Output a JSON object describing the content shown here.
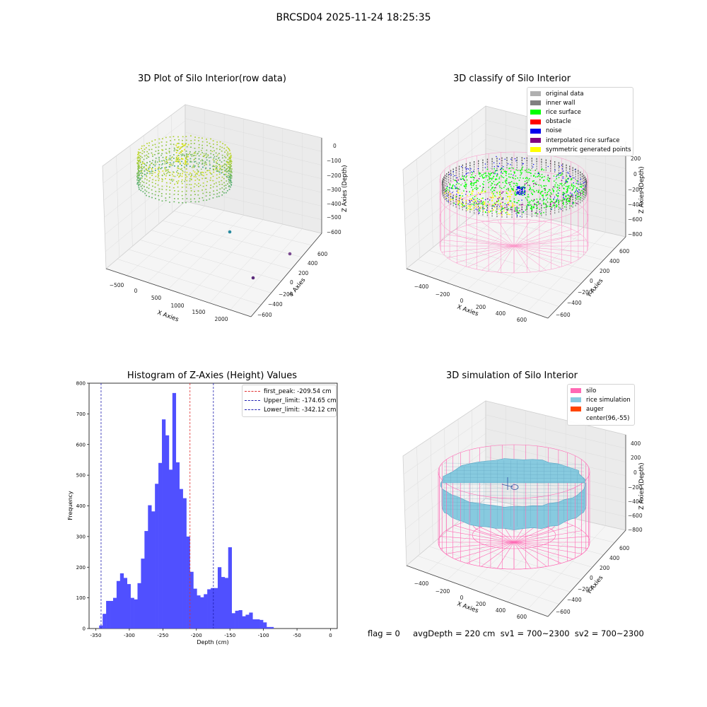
{
  "figure": {
    "title": "BRCSD04 2025-11-24 18:25:35"
  },
  "status_line": "flag = 0     avgDepth = 220 cm  sv1 = 700~2300  sv2 = 700~2300",
  "colors": {
    "hist_bar": "#5050ff",
    "first_peak_line": "#e03030",
    "limit_lines": "#2020b0",
    "silo_wire": "#ff69b4",
    "rice_sim": "#87cadf",
    "auger": "#ff4500",
    "rice_surface": "#00ff00",
    "noise": "#0000ee",
    "viridis_low": "#2a9a8c",
    "viridis_high": "#d8e21a"
  },
  "chart_data": [
    {
      "type": "scatter3d",
      "title": "3D Plot of Silo Interior(row data)",
      "xlabel": "X Axies",
      "ylabel": "Y Axies",
      "zlabel": "Z Axies (Depth)",
      "x_ticks": [
        "−500",
        "0",
        "500",
        "1000",
        "1500",
        "2000"
      ],
      "y_ticks": [
        "600",
        "400",
        "200",
        "0",
        "−200",
        "−400",
        "−600"
      ],
      "z_ticks": [
        "0",
        "−100",
        "−200",
        "−300",
        "−400",
        "−500",
        "−600"
      ],
      "outlier_points": [
        {
          "x": 1200,
          "y": 150,
          "z": -620
        },
        {
          "x": 2100,
          "y": 500,
          "z": -600
        },
        {
          "x": 2050,
          "y": -500,
          "z": -640
        }
      ]
    },
    {
      "type": "scatter3d",
      "title": "3D classify of Silo Interior",
      "xlabel": "X Axies",
      "ylabel": "Y Axies",
      "zlabel": "Z Axies (Depth)",
      "x_ticks": [
        "−400",
        "−200",
        "0",
        "200",
        "400",
        "600"
      ],
      "y_ticks": [
        "600",
        "400",
        "200",
        "0",
        "−200",
        "−400",
        "−600"
      ],
      "z_ticks": [
        "200",
        "0",
        "−200",
        "−400",
        "−600",
        "−800"
      ],
      "legend": [
        {
          "label": "original data",
          "color": "#b0b0b0"
        },
        {
          "label": "inner wall",
          "color": "#808080"
        },
        {
          "label": "rice surface",
          "color": "#00ff00"
        },
        {
          "label": "obstacle",
          "color": "#ff0000"
        },
        {
          "label": "noise",
          "color": "#0000ee"
        },
        {
          "label": "interpolated rice surface",
          "color": "#800080"
        },
        {
          "label": "symmetric generated points",
          "color": "#ffff00"
        }
      ]
    },
    {
      "type": "bar",
      "title": "Histogram of Z-Axies (Height) Values",
      "xlabel": "Depth (cm)",
      "ylabel": "Frequency",
      "xlim": [
        -360,
        10
      ],
      "ylim": [
        0,
        800
      ],
      "x_ticks": [
        -350,
        -300,
        -250,
        -200,
        -150,
        -100,
        -50,
        0
      ],
      "y_ticks": [
        0,
        100,
        200,
        300,
        400,
        500,
        600,
        700,
        800
      ],
      "bin_start": -345,
      "bin_width": 5.2,
      "values": [
        10,
        48,
        90,
        90,
        100,
        155,
        180,
        165,
        145,
        100,
        95,
        148,
        228,
        318,
        402,
        382,
        472,
        540,
        682,
        630,
        518,
        768,
        542,
        455,
        425,
        300,
        185,
        130,
        108,
        102,
        112,
        128,
        132,
        132,
        200,
        168,
        165,
        265,
        50,
        58,
        60,
        40,
        45,
        52,
        30,
        30,
        28,
        20,
        5,
        5
      ],
      "vlines": [
        {
          "label": "first_peak: -209.54 cm",
          "x": -209.54,
          "color": "#e03030"
        },
        {
          "label": "Upper_limit: -174.65 cm",
          "x": -174.65,
          "color": "#2020b0"
        },
        {
          "label": "Lower_limit: -342.12 cm",
          "x": -342.12,
          "color": "#2020b0"
        }
      ]
    },
    {
      "type": "surface3d",
      "title": "3D simulation of Silo Interior",
      "xlabel": "X Axies",
      "ylabel": "Y Axies",
      "zlabel": "Z Axies (Depth)",
      "x_ticks": [
        "−400",
        "−200",
        "0",
        "200",
        "400",
        "600"
      ],
      "y_ticks": [
        "600",
        "400",
        "200",
        "0",
        "−200",
        "−400",
        "−600"
      ],
      "z_ticks": [
        "400",
        "200",
        "0",
        "−200",
        "−400",
        "−600",
        "−800"
      ],
      "legend": [
        {
          "label": "silo",
          "color": "#ff69b4"
        },
        {
          "label": "rice simulation",
          "color": "#87cadf"
        },
        {
          "label": "auger",
          "color": "#ff4500"
        },
        {
          "label": "center(96,-55)",
          "color": ""
        }
      ]
    }
  ]
}
